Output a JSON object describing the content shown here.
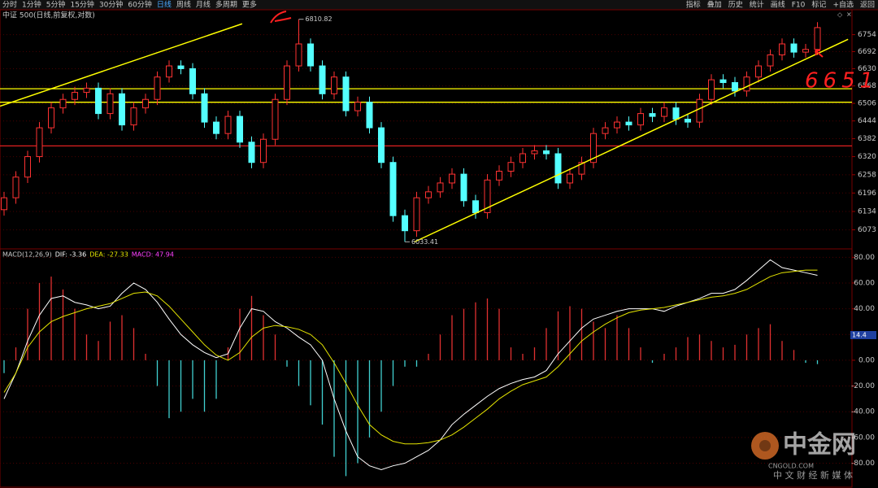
{
  "toolbar": {
    "left": [
      "分时",
      "1分钟",
      "5分钟",
      "15分钟",
      "30分钟",
      "60分钟",
      "日线",
      "周线",
      "月线",
      "多周期",
      "更多"
    ],
    "active": "日线",
    "right": [
      "指标",
      "叠加",
      "历史",
      "统计",
      "画线",
      "F10",
      "标记",
      "+自选",
      "返回"
    ]
  },
  "watermark": {
    "name": "中金网",
    "site": "CNGOLD.COM",
    "slogan": "中 文 财 经 新 媒 体"
  },
  "chart_data": [
    {
      "type": "candlestick",
      "title": "中证 500(日线,前复权,对数)",
      "log": true,
      "up_color": "#ff3232",
      "down_color": "#54ffff",
      "grid": true,
      "ylim": [
        6013,
        6828
      ],
      "yticks": [
        6754,
        6692,
        6630,
        6568,
        6506,
        6444,
        6382,
        6320,
        6258,
        6196,
        6134,
        6073
      ],
      "open": [
        6140,
        6180,
        6250,
        6320,
        6420,
        6490,
        6520,
        6545,
        6560,
        6470,
        6540,
        6430,
        6490,
        6520,
        6600,
        6640,
        6630,
        6540,
        6440,
        6400,
        6460,
        6370,
        6300,
        6380,
        6520,
        6640,
        6720,
        6640,
        6540,
        6600,
        6480,
        6510,
        6420,
        6300,
        6120,
        6070,
        6180,
        6200,
        6230,
        6260,
        6170,
        6130,
        6240,
        6270,
        6300,
        6330,
        6340,
        6330,
        6230,
        6260,
        6300,
        6400,
        6420,
        6440,
        6430,
        6470,
        6460,
        6490,
        6450,
        6440,
        6520,
        6590,
        6580,
        6550,
        6600,
        6640,
        6680,
        6720,
        6690,
        6700
      ],
      "close": [
        6180,
        6250,
        6320,
        6420,
        6490,
        6520,
        6545,
        6560,
        6470,
        6540,
        6430,
        6490,
        6520,
        6600,
        6640,
        6630,
        6540,
        6440,
        6400,
        6460,
        6370,
        6300,
        6380,
        6520,
        6640,
        6720,
        6640,
        6540,
        6600,
        6480,
        6510,
        6420,
        6300,
        6120,
        6070,
        6180,
        6200,
        6230,
        6260,
        6170,
        6130,
        6240,
        6270,
        6300,
        6330,
        6340,
        6330,
        6230,
        6260,
        6300,
        6400,
        6420,
        6440,
        6430,
        6470,
        6460,
        6490,
        6450,
        6440,
        6520,
        6590,
        6580,
        6550,
        6600,
        6640,
        6680,
        6720,
        6690,
        6700,
        6780
      ],
      "high": [
        6200,
        6270,
        6340,
        6440,
        6510,
        6540,
        6565,
        6580,
        6580,
        6560,
        6560,
        6510,
        6540,
        6620,
        6660,
        6660,
        6650,
        6560,
        6460,
        6480,
        6480,
        6390,
        6400,
        6540,
        6660,
        6810.82,
        6740,
        6660,
        6620,
        6620,
        6530,
        6530,
        6440,
        6320,
        6140,
        6200,
        6220,
        6250,
        6280,
        6280,
        6190,
        6260,
        6290,
        6320,
        6350,
        6360,
        6360,
        6350,
        6280,
        6320,
        6420,
        6440,
        6460,
        6460,
        6490,
        6490,
        6510,
        6510,
        6470,
        6540,
        6610,
        6610,
        6600,
        6620,
        6660,
        6700,
        6740,
        6740,
        6720,
        6800
      ],
      "low": [
        6120,
        6160,
        6230,
        6300,
        6400,
        6470,
        6500,
        6525,
        6450,
        6450,
        6410,
        6410,
        6470,
        6500,
        6580,
        6610,
        6520,
        6420,
        6380,
        6380,
        6350,
        6280,
        6280,
        6360,
        6500,
        6620,
        6620,
        6520,
        6520,
        6460,
        6460,
        6400,
        6280,
        6100,
        6033.41,
        6050,
        6160,
        6180,
        6210,
        6150,
        6110,
        6110,
        6220,
        6250,
        6280,
        6310,
        6310,
        6210,
        6210,
        6240,
        6280,
        6380,
        6400,
        6410,
        6410,
        6440,
        6440,
        6430,
        6420,
        6420,
        6500,
        6560,
        6530,
        6530,
        6580,
        6620,
        6660,
        6670,
        6670,
        6680
      ],
      "hlines": [
        {
          "value": 6558,
          "color": "#ffff00"
        },
        {
          "value": 6510,
          "color": "#ffff00"
        },
        {
          "value": 6357,
          "color": "#e02020"
        }
      ],
      "trendlines": [
        {
          "x": [
            0.66,
            21.2
          ],
          "y": [
            6496,
            6794
          ],
          "color": "#ffff00"
        },
        {
          "x": [
            35.8,
            72.6
          ],
          "y": [
            6033,
            6737
          ],
          "color": "#ffff00"
        }
      ],
      "annotations": [
        {
          "text": "6810.82",
          "value": 6810.82
        },
        {
          "text": "6033.41",
          "value": 6033.41
        }
      ],
      "note": "6651"
    },
    {
      "type": "macd",
      "indicator": "MACD(12,26,9)",
      "ylim": [
        -98,
        84
      ],
      "yticks": [
        {
          "value": 80,
          "label": "80.00"
        },
        {
          "value": 60,
          "label": "60.00"
        },
        {
          "value": 40,
          "label": "40.00"
        },
        {
          "value": 20,
          "label": "20.00"
        },
        {
          "value": 0,
          "label": "0.00"
        },
        {
          "value": -20,
          "label": "-20.00"
        },
        {
          "value": -40,
          "label": "-40.00"
        },
        {
          "value": -60,
          "label": "-60.00"
        },
        {
          "value": -80,
          "label": "-80.00"
        }
      ],
      "marker_label": "14.4",
      "series": [
        {
          "name": "DIF",
          "legend_text": "DIF: -3.36",
          "color": "#ffffff",
          "kind": "line",
          "values": [
            -30,
            -10,
            15,
            35,
            48,
            50,
            45,
            43,
            40,
            42,
            52,
            60,
            55,
            45,
            32,
            20,
            12,
            6,
            2,
            5,
            25,
            40,
            38,
            30,
            25,
            18,
            12,
            0,
            -30,
            -55,
            -75,
            -82,
            -85,
            -82,
            -80,
            -75,
            -70,
            -62,
            -50,
            -42,
            -35,
            -28,
            -22,
            -18,
            -15,
            -13,
            -8,
            5,
            15,
            25,
            32,
            35,
            38,
            40,
            40,
            40,
            38,
            42,
            45,
            48,
            52,
            52,
            55,
            62,
            70,
            78,
            72,
            70,
            68,
            66
          ]
        },
        {
          "name": "DEA",
          "legend_text": "DEA: -27.33",
          "color": "#e5e500",
          "kind": "line",
          "values": [
            -25,
            -10,
            10,
            22,
            30,
            34,
            37,
            40,
            42,
            44,
            48,
            52,
            53,
            50,
            42,
            32,
            22,
            12,
            4,
            0,
            6,
            18,
            25,
            27,
            26,
            24,
            20,
            12,
            -2,
            -18,
            -35,
            -50,
            -58,
            -63,
            -65,
            -65,
            -64,
            -62,
            -58,
            -52,
            -45,
            -38,
            -30,
            -24,
            -19,
            -16,
            -13,
            -5,
            5,
            15,
            22,
            28,
            33,
            37,
            39,
            40,
            41,
            43,
            45,
            47,
            49,
            50,
            52,
            55,
            60,
            65,
            68,
            69,
            70,
            70
          ]
        },
        {
          "name": "MACD",
          "legend_text": "MACD: 47.94",
          "color": "#ff40ff",
          "kind": "bar",
          "up_color": "#e03030",
          "down_color": "#40d0d0",
          "values": [
            -10,
            10,
            40,
            60,
            65,
            55,
            40,
            20,
            15,
            30,
            35,
            25,
            5,
            -20,
            -45,
            -40,
            -30,
            -40,
            -30,
            10,
            40,
            50,
            35,
            20,
            -5,
            -20,
            -35,
            -50,
            -75,
            -90,
            -80,
            -60,
            -40,
            -20,
            -5,
            -5,
            5,
            20,
            35,
            40,
            45,
            48,
            40,
            10,
            5,
            10,
            25,
            38,
            42,
            40,
            30,
            25,
            35,
            25,
            10,
            -2,
            5,
            10,
            18,
            20,
            15,
            10,
            12,
            20,
            25,
            28,
            15,
            8,
            -2,
            -3
          ]
        }
      ]
    }
  ]
}
